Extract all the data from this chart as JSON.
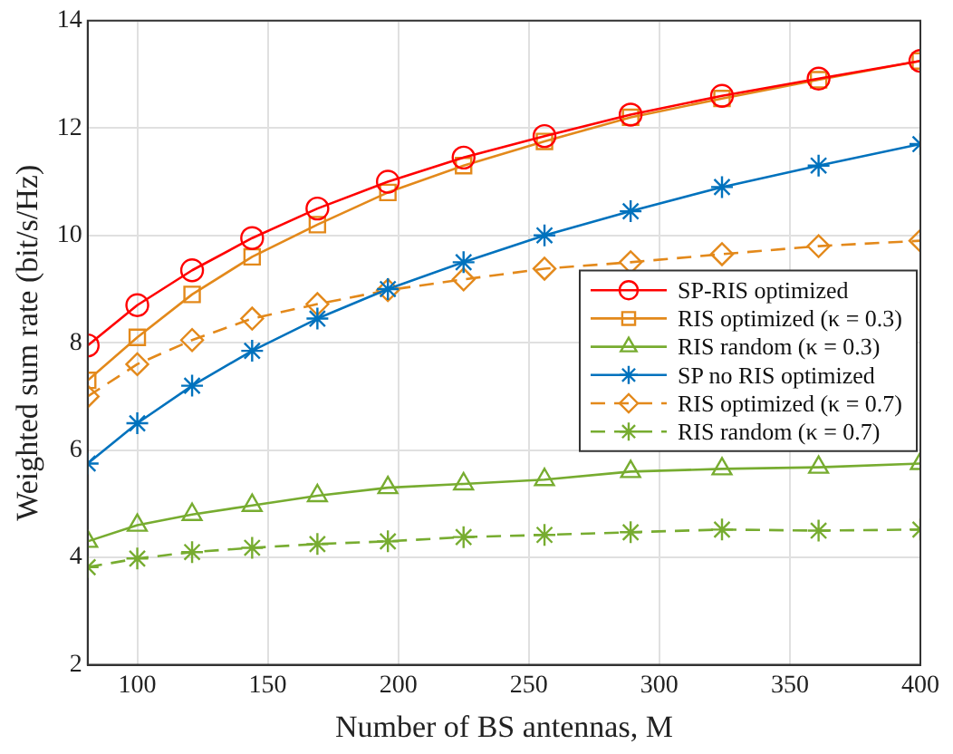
{
  "chart_data": {
    "type": "line",
    "xlabel": "Number of BS antennas, M",
    "ylabel": "Weighted sum rate (bit/s/Hz)",
    "x": [
      81,
      100,
      121,
      144,
      169,
      196,
      225,
      256,
      289,
      324,
      361,
      400
    ],
    "xlim": [
      81,
      400
    ],
    "xticks": [
      100,
      150,
      200,
      250,
      300,
      350,
      400
    ],
    "ylim": [
      2,
      14
    ],
    "yticks": [
      2,
      4,
      6,
      8,
      10,
      12,
      14
    ],
    "grid": true,
    "legend": "right",
    "series": [
      {
        "name": "SP-RIS optimized",
        "color": "#ff0000",
        "marker": "circle",
        "line_style": "solid",
        "values": [
          7.95,
          8.7,
          9.35,
          9.95,
          10.5,
          11.0,
          11.45,
          11.85,
          12.25,
          12.6,
          12.92,
          13.25
        ]
      },
      {
        "name": "RIS optimized (κ = 0.3)",
        "color": "#e3891b",
        "marker": "square",
        "line_style": "solid",
        "values": [
          7.3,
          8.1,
          8.9,
          9.6,
          10.2,
          10.8,
          11.3,
          11.75,
          12.2,
          12.55,
          12.9,
          13.25
        ]
      },
      {
        "name": "RIS random (κ = 0.3)",
        "color": "#77ac30",
        "marker": "triangle",
        "line_style": "solid",
        "values": [
          4.3,
          4.6,
          4.8,
          4.97,
          5.15,
          5.3,
          5.37,
          5.45,
          5.6,
          5.65,
          5.68,
          5.75
        ]
      },
      {
        "name": "SP no RIS optimized",
        "color": "#0072bd",
        "marker": "cross",
        "line_style": "solid",
        "values": [
          5.75,
          6.5,
          7.2,
          7.85,
          8.45,
          9.0,
          9.5,
          10.0,
          10.45,
          10.9,
          11.3,
          11.7
        ]
      },
      {
        "name": "RIS optimized (κ = 0.7)",
        "color": "#e3891b",
        "marker": "diamond",
        "line_style": "dashed",
        "values": [
          7.0,
          7.6,
          8.05,
          8.45,
          8.72,
          8.98,
          9.18,
          9.38,
          9.5,
          9.65,
          9.8,
          9.9
        ]
      },
      {
        "name": "RIS random (κ = 0.7)",
        "color": "#77ac30",
        "marker": "cross",
        "line_style": "dashed",
        "values": [
          3.82,
          3.98,
          4.1,
          4.18,
          4.25,
          4.3,
          4.38,
          4.42,
          4.47,
          4.52,
          4.5,
          4.52
        ]
      }
    ]
  }
}
